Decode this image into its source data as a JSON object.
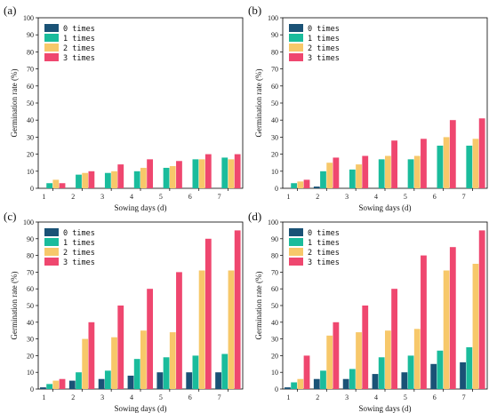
{
  "colors": {
    "0 times": "#1a5276",
    "1 times": "#1abc9c",
    "2 times": "#f7c86a",
    "3 times": "#ef476f"
  },
  "chart_data": [
    {
      "type": "bar",
      "panel_label": "(a)",
      "xlabel": "Sowing days (d)",
      "ylabel": "Germination rate (%)",
      "ylim": [
        0,
        100
      ],
      "yticks": [
        0,
        10,
        20,
        30,
        40,
        50,
        60,
        70,
        80,
        90,
        100
      ],
      "categories": [
        "1",
        "2",
        "3",
        "4",
        "5",
        "6",
        "7"
      ],
      "legend_position": "top-left",
      "series": [
        {
          "name": "0 times",
          "values": [
            0,
            0,
            0,
            0,
            0,
            0,
            0
          ]
        },
        {
          "name": "1 times",
          "values": [
            3,
            8,
            9,
            10,
            12,
            17,
            18
          ]
        },
        {
          "name": "2 times",
          "values": [
            5,
            9,
            10,
            12,
            13,
            17,
            17
          ]
        },
        {
          "name": "3 times",
          "values": [
            3,
            10,
            14,
            17,
            16,
            20,
            20
          ]
        }
      ]
    },
    {
      "type": "bar",
      "panel_label": "(b)",
      "xlabel": "Sowing days (d)",
      "ylabel": "Germination rate (%)",
      "ylim": [
        0,
        100
      ],
      "yticks": [
        0,
        10,
        20,
        30,
        40,
        50,
        60,
        70,
        80,
        90,
        100
      ],
      "categories": [
        "1",
        "2",
        "3",
        "4",
        "5",
        "6",
        "7"
      ],
      "legend_position": "top-left",
      "series": [
        {
          "name": "0 times",
          "values": [
            0,
            1,
            0,
            0,
            0,
            0,
            0
          ]
        },
        {
          "name": "1 times",
          "values": [
            3,
            10,
            11,
            17,
            17,
            25,
            25
          ]
        },
        {
          "name": "2 times",
          "values": [
            4,
            15,
            14,
            19,
            19,
            30,
            29
          ]
        },
        {
          "name": "3 times",
          "values": [
            5,
            18,
            19,
            28,
            29,
            40,
            41
          ]
        }
      ]
    },
    {
      "type": "bar",
      "panel_label": "(c)",
      "xlabel": "Sowing days (d)",
      "ylabel": "Germination rate (%)",
      "ylim": [
        0,
        100
      ],
      "yticks": [
        0,
        10,
        20,
        30,
        40,
        50,
        60,
        70,
        80,
        90,
        100
      ],
      "categories": [
        "1",
        "2",
        "3",
        "4",
        "5",
        "6",
        "7"
      ],
      "legend_position": "top-left",
      "series": [
        {
          "name": "0 times",
          "values": [
            1,
            5,
            6,
            8,
            10,
            10,
            10
          ]
        },
        {
          "name": "1 times",
          "values": [
            3,
            10,
            11,
            18,
            19,
            20,
            21
          ]
        },
        {
          "name": "2 times",
          "values": [
            5,
            30,
            31,
            35,
            34,
            71,
            71
          ]
        },
        {
          "name": "3 times",
          "values": [
            6,
            40,
            50,
            60,
            70,
            90,
            95
          ]
        }
      ]
    },
    {
      "type": "bar",
      "panel_label": "(d)",
      "xlabel": "Sowing days (d)",
      "ylabel": "Germination rate (%)",
      "ylim": [
        0,
        100
      ],
      "yticks": [
        0,
        10,
        20,
        30,
        40,
        50,
        60,
        70,
        80,
        90,
        100
      ],
      "categories": [
        "1",
        "2",
        "3",
        "4",
        "5",
        "6",
        "7"
      ],
      "legend_position": "top-left",
      "series": [
        {
          "name": "0 times",
          "values": [
            1,
            6,
            6,
            9,
            10,
            15,
            16
          ]
        },
        {
          "name": "1 times",
          "values": [
            4,
            11,
            12,
            19,
            20,
            23,
            25
          ]
        },
        {
          "name": "2 times",
          "values": [
            6,
            32,
            34,
            35,
            36,
            71,
            75
          ]
        },
        {
          "name": "3 times",
          "values": [
            20,
            40,
            50,
            60,
            80,
            85,
            95
          ]
        }
      ]
    }
  ]
}
